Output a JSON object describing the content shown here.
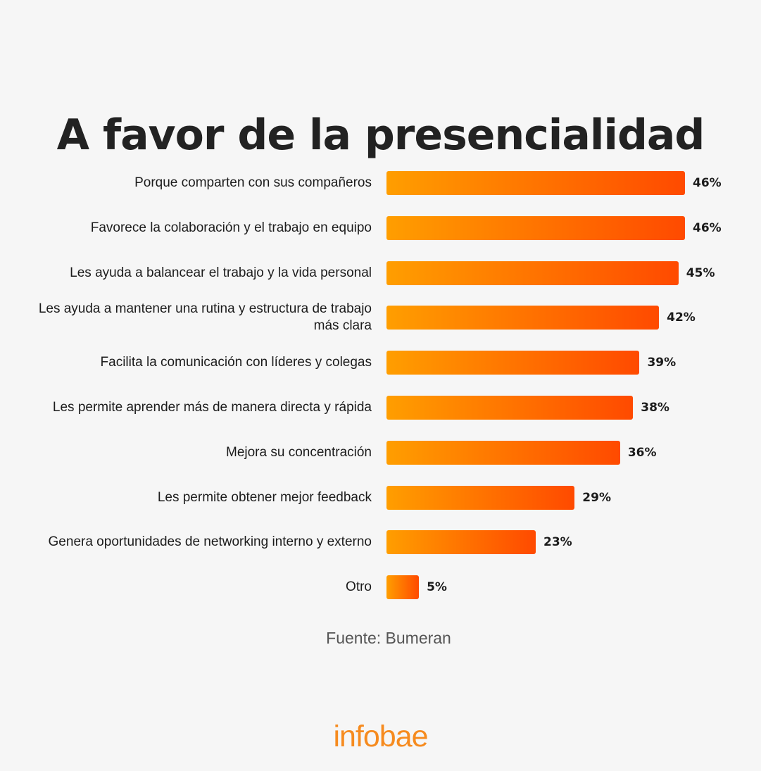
{
  "chart_data": {
    "type": "bar",
    "orientation": "horizontal",
    "title": "A favor de la presencialidad",
    "categories": [
      "Porque comparten con sus compañeros",
      "Favorece la colaboración y el trabajo en equipo",
      "Les ayuda a balancear el trabajo y la vida personal",
      "Les ayuda a mantener una rutina y estructura de trabajo más clara",
      "Facilita la comunicación con líderes y colegas",
      "Les permite aprender más de manera directa y rápida",
      "Mejora su concentración",
      "Les permite obtener mejor feedback",
      "Genera oportunidades de networking interno y externo",
      "Otro"
    ],
    "values": [
      46,
      46,
      45,
      42,
      39,
      38,
      36,
      29,
      23,
      5
    ],
    "value_labels": [
      "46%",
      "46%",
      "45%",
      "42%",
      "39%",
      "38%",
      "36%",
      "29%",
      "23%",
      "5%"
    ],
    "unit": "%",
    "xlim": [
      0,
      46
    ],
    "grid": false,
    "legend": "none",
    "colors": {
      "bar_start": "#ff9e00",
      "bar_end": "#ff4a00"
    }
  },
  "source": "Fuente: Bumeran",
  "brand": {
    "logo_text": "infobae",
    "color": "#f68b1f"
  },
  "colors": {
    "background": "#f6f6f6",
    "title": "#222222",
    "text": "#1c1c1c"
  }
}
